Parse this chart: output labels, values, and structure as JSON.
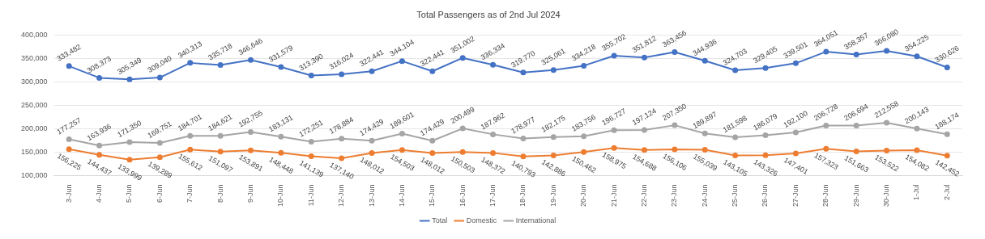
{
  "chart_data": {
    "type": "line",
    "title": "Total Passengers as of 2nd Jul 2024",
    "categories": [
      "3-Jun",
      "4-Jun",
      "5-Jun",
      "6-Jun",
      "7-Jun",
      "8-Jun",
      "9-Jun",
      "10-Jun",
      "11-Jun",
      "12-Jun",
      "13-Jun",
      "14-Jun",
      "15-Jun",
      "16-Jun",
      "17-Jun",
      "18-Jun",
      "19-Jun",
      "20-Jun",
      "21-Jun",
      "22-Jun",
      "23-Jun",
      "24-Jun",
      "25-Jun",
      "26-Jun",
      "27-Jun",
      "28-Jun",
      "29-Jun",
      "30-Jun",
      "1-Jul",
      "2-Jul"
    ],
    "series": [
      {
        "name": "Total",
        "color": "#4472c4",
        "values": [
          333482,
          308373,
          305349,
          309040,
          340313,
          335718,
          346646,
          331579,
          313390,
          316024,
          322441,
          344104,
          322441,
          351002,
          336334,
          319770,
          325061,
          334218,
          355702,
          351812,
          363456,
          344936,
          324703,
          329405,
          339501,
          364051,
          358357,
          366080,
          354225,
          330626
        ],
        "value_labels": [
          "333,482",
          "308,373",
          "305,349",
          "309,040",
          "340,313",
          "335,718",
          "346,646",
          "331,579",
          "313,390",
          "316,024",
          "322,441",
          "344,104",
          "322,441",
          "351,002",
          "336,334",
          "319,770",
          "325,061",
          "334,218",
          "355,702",
          "351,812",
          "363,456",
          "344,936",
          "324,703",
          "329,405",
          "339,501",
          "364,051",
          "358,357",
          "366,080",
          "354,225",
          "330,626"
        ]
      },
      {
        "name": "Domestic",
        "color": "#ed7d31",
        "values": [
          156225,
          144437,
          133999,
          139289,
          155612,
          151097,
          153891,
          148448,
          141139,
          137140,
          148012,
          154503,
          148012,
          150503,
          148372,
          140793,
          142886,
          150462,
          158975,
          154688,
          156106,
          155039,
          143105,
          143326,
          147401,
          157323,
          151663,
          153522,
          154082,
          142452
        ],
        "value_labels": [
          "156,225",
          "144,437",
          "133,999",
          "139,289",
          "155,612",
          "151,097",
          "153,891",
          "148,448",
          "141,139",
          "137,140",
          "148,012",
          "154,503",
          "148,012",
          "150,503",
          "148,372",
          "140,793",
          "142,886",
          "150,462",
          "158,975",
          "154,688",
          "156,106",
          "155,039",
          "143,105",
          "143,326",
          "147,401",
          "157,323",
          "151,663",
          "153,522",
          "154,082",
          "142,452"
        ]
      },
      {
        "name": "International",
        "color": "#a5a5a5",
        "values": [
          177257,
          163936,
          171350,
          169751,
          184701,
          184621,
          192755,
          183131,
          172251,
          178884,
          174429,
          189601,
          174429,
          200499,
          187962,
          178977,
          182175,
          183756,
          196727,
          197124,
          207350,
          189897,
          181598,
          186079,
          192100,
          206728,
          206694,
          212558,
          200143,
          188174
        ],
        "value_labels": [
          "177,257",
          "163,936",
          "171,350",
          "169,751",
          "184,701",
          "184,621",
          "192,755",
          "183,131",
          "172,251",
          "178,884",
          "174,429",
          "189,601",
          "174,429",
          "200,499",
          "187,962",
          "178,977",
          "182,175",
          "183,756",
          "196,727",
          "197,124",
          "207,350",
          "189,897",
          "181,598",
          "186,079",
          "192,100",
          "206,728",
          "206,694",
          "212,558",
          "200,143",
          "188,174"
        ]
      }
    ],
    "ylim": [
      100000,
      400000
    ],
    "yticks": [
      {
        "value": 100000,
        "label": "100,000"
      },
      {
        "value": 150000,
        "label": "150,000"
      },
      {
        "value": 200000,
        "label": "200,000"
      },
      {
        "value": 250000,
        "label": "250,000"
      },
      {
        "value": 300000,
        "label": "300,000"
      },
      {
        "value": 350000,
        "label": "350,000"
      },
      {
        "value": 400000,
        "label": "400,000"
      }
    ],
    "grid": "y",
    "legend": "bottom",
    "marker": "circle",
    "line_style": "solid"
  }
}
